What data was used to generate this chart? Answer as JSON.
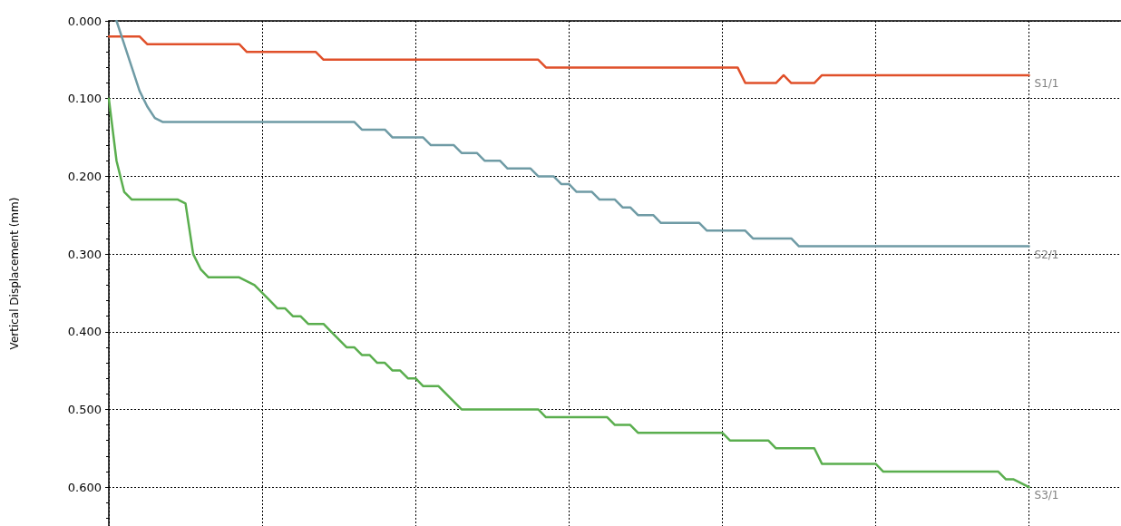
{
  "chart_data": {
    "type": "line",
    "ylabel": "Vertical Displacement (mm)",
    "categories": [
      null,
      null,
      null,
      null,
      null,
      null,
      null,
      null,
      null,
      null,
      null,
      null,
      null,
      null,
      null,
      null,
      null,
      null,
      null,
      null,
      null,
      null,
      null,
      null,
      null,
      null,
      null,
      null,
      null,
      null,
      null,
      null,
      null,
      null,
      null,
      null,
      null,
      null,
      null,
      null,
      null,
      null,
      null,
      null,
      null,
      null,
      null,
      null,
      null,
      null,
      null,
      null,
      null,
      null,
      null,
      null,
      null,
      null,
      null,
      null,
      null,
      null,
      null,
      null,
      null,
      null,
      null,
      null,
      null,
      null,
      null,
      null,
      null,
      null,
      null,
      null,
      null,
      null,
      null,
      null,
      null,
      null,
      null,
      null,
      null,
      null,
      null,
      null,
      null,
      null,
      null,
      null,
      null,
      null,
      null,
      null,
      null,
      null,
      null,
      null,
      null,
      null,
      null,
      null,
      null,
      null,
      null,
      null,
      null,
      null,
      null,
      null,
      null,
      null,
      null,
      null,
      null,
      null,
      null,
      null,
      null,
      null,
      null,
      null,
      null,
      null,
      null,
      null,
      null,
      null,
      null,
      null,
      null
    ],
    "series": [
      {
        "name": "S1/1",
        "color": "#e0502a",
        "values": [
          0.02,
          0.02,
          0.02,
          0.02,
          0.02,
          0.03,
          0.03,
          0.03,
          0.03,
          0.03,
          0.03,
          0.03,
          0.03,
          0.03,
          0.03,
          0.03,
          0.03,
          0.03,
          0.04,
          0.04,
          0.04,
          0.04,
          0.04,
          0.04,
          0.04,
          0.04,
          0.04,
          0.04,
          0.05,
          0.05,
          0.05,
          0.05,
          0.05,
          0.05,
          0.05,
          0.05,
          0.05,
          0.05,
          0.05,
          0.05,
          0.05,
          0.05,
          0.05,
          0.05,
          0.05,
          0.05,
          0.05,
          0.05,
          0.05,
          0.05,
          0.05,
          0.05,
          0.05,
          0.05,
          0.05,
          0.05,
          0.05,
          0.06,
          0.06,
          0.06,
          0.06,
          0.06,
          0.06,
          0.06,
          0.06,
          0.06,
          0.06,
          0.06,
          0.06,
          0.06,
          0.06,
          0.06,
          0.06,
          0.06,
          0.06,
          0.06,
          0.06,
          0.06,
          0.06,
          0.06,
          0.06,
          0.06,
          0.06,
          0.08,
          0.08,
          0.08,
          0.08,
          0.08,
          0.07,
          0.08,
          0.08,
          0.08,
          0.08,
          0.07,
          0.07,
          0.07,
          0.07,
          0.07,
          0.07,
          0.07,
          0.07,
          0.07,
          0.07,
          0.07,
          0.07,
          0.07,
          0.07,
          0.07,
          0.07,
          0.07,
          0.07,
          0.07,
          0.07,
          0.07,
          0.07,
          0.07,
          0.07,
          0.07,
          0.07,
          0.07,
          0.07,
          null,
          null,
          null,
          null,
          null,
          null,
          null,
          null,
          null,
          null,
          null,
          null
        ]
      },
      {
        "name": "S2/1",
        "color": "#6f9ba5",
        "values": [
          null,
          0.0,
          0.03,
          0.06,
          0.09,
          0.11,
          0.125,
          0.13,
          0.13,
          0.13,
          0.13,
          0.13,
          0.13,
          0.13,
          0.13,
          0.13,
          0.13,
          0.13,
          0.13,
          0.13,
          0.13,
          0.13,
          0.13,
          0.13,
          0.13,
          0.13,
          0.13,
          0.13,
          0.13,
          0.13,
          0.13,
          0.13,
          0.13,
          0.14,
          0.14,
          0.14,
          0.14,
          0.15,
          0.15,
          0.15,
          0.15,
          0.15,
          0.16,
          0.16,
          0.16,
          0.16,
          0.17,
          0.17,
          0.17,
          0.18,
          0.18,
          0.18,
          0.19,
          0.19,
          0.19,
          0.19,
          0.2,
          0.2,
          0.2,
          0.21,
          0.21,
          0.22,
          0.22,
          0.22,
          0.23,
          0.23,
          0.23,
          0.24,
          0.24,
          0.25,
          0.25,
          0.25,
          0.26,
          0.26,
          0.26,
          0.26,
          0.26,
          0.26,
          0.27,
          0.27,
          0.27,
          0.27,
          0.27,
          0.27,
          0.28,
          0.28,
          0.28,
          0.28,
          0.28,
          0.28,
          0.29,
          0.29,
          0.29,
          0.29,
          0.29,
          0.29,
          0.29,
          0.29,
          0.29,
          0.29,
          0.29,
          0.29,
          0.29,
          0.29,
          0.29,
          0.29,
          0.29,
          0.29,
          0.29,
          0.29,
          0.29,
          0.29,
          0.29,
          0.29,
          0.29,
          0.29,
          0.29,
          0.29,
          0.29,
          0.29,
          0.29,
          null,
          null,
          null,
          null,
          null,
          null,
          null,
          null,
          null,
          null,
          null,
          null
        ]
      },
      {
        "name": "S3/1",
        "color": "#5aae4e",
        "values": [
          0.1,
          0.18,
          0.22,
          0.23,
          0.23,
          0.23,
          0.23,
          0.23,
          0.23,
          0.23,
          0.235,
          0.3,
          0.32,
          0.33,
          0.33,
          0.33,
          0.33,
          0.33,
          0.335,
          0.34,
          0.35,
          0.36,
          0.37,
          0.37,
          0.38,
          0.38,
          0.39,
          0.39,
          0.39,
          0.4,
          0.41,
          0.42,
          0.42,
          0.43,
          0.43,
          0.44,
          0.44,
          0.45,
          0.45,
          0.46,
          0.46,
          0.47,
          0.47,
          0.47,
          0.48,
          0.49,
          0.5,
          0.5,
          0.5,
          0.5,
          0.5,
          0.5,
          0.5,
          0.5,
          0.5,
          0.5,
          0.5,
          0.51,
          0.51,
          0.51,
          0.51,
          0.51,
          0.51,
          0.51,
          0.51,
          0.51,
          0.52,
          0.52,
          0.52,
          0.53,
          0.53,
          0.53,
          0.53,
          0.53,
          0.53,
          0.53,
          0.53,
          0.53,
          0.53,
          0.53,
          0.53,
          0.54,
          0.54,
          0.54,
          0.54,
          0.54,
          0.54,
          0.55,
          0.55,
          0.55,
          0.55,
          0.55,
          0.55,
          0.57,
          0.57,
          0.57,
          0.57,
          0.57,
          0.57,
          0.57,
          0.57,
          0.58,
          0.58,
          0.58,
          0.58,
          0.58,
          0.58,
          0.58,
          0.58,
          0.58,
          0.58,
          0.58,
          0.58,
          0.58,
          0.58,
          0.58,
          0.58,
          0.59,
          0.59,
          0.595,
          0.6,
          null,
          null,
          null,
          null,
          null,
          null,
          null,
          null,
          null,
          null,
          null,
          null
        ]
      }
    ],
    "ylim": [
      0.65,
      0
    ],
    "yticks": [
      {
        "value": 0,
        "label": "0.000"
      },
      {
        "value": 0.1,
        "label": "0.100"
      },
      {
        "value": 0.2,
        "label": "0.200"
      },
      {
        "value": 0.3,
        "label": "0.300"
      },
      {
        "value": 0.4,
        "label": "0.400"
      },
      {
        "value": 0.5,
        "label": "0.500"
      },
      {
        "value": 0.6,
        "label": "0.600"
      }
    ],
    "tick_labels": "y",
    "grid": true,
    "line_style": "solid"
  }
}
